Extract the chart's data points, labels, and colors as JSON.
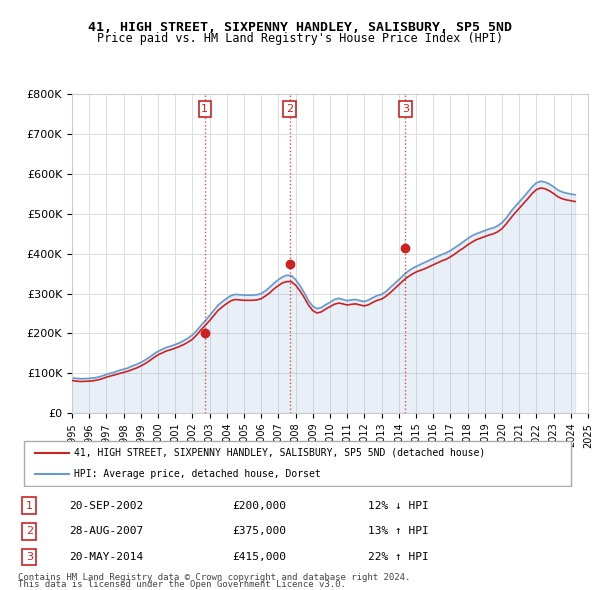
{
  "title": "41, HIGH STREET, SIXPENNY HANDLEY, SALISBURY, SP5 5ND",
  "subtitle": "Price paid vs. HM Land Registry's House Price Index (HPI)",
  "ylim": [
    0,
    800000
  ],
  "yticks": [
    0,
    100000,
    200000,
    300000,
    400000,
    500000,
    600000,
    700000,
    800000
  ],
  "ytick_labels": [
    "£0",
    "£100K",
    "£200K",
    "£300K",
    "£400K",
    "£500K",
    "£600K",
    "£700K",
    "£800K"
  ],
  "hpi_color": "#6699cc",
  "price_color": "#cc2222",
  "marker_color": "#cc2222",
  "transactions": [
    {
      "date_num": 2002.72,
      "price": 200000,
      "label": "1"
    },
    {
      "date_num": 2007.66,
      "price": 375000,
      "label": "2"
    },
    {
      "date_num": 2014.38,
      "price": 415000,
      "label": "3"
    }
  ],
  "transaction_labels": [
    {
      "label": "1",
      "date": "20-SEP-2002",
      "price": "£200,000",
      "change": "12% ↓ HPI"
    },
    {
      "label": "2",
      "date": "28-AUG-2007",
      "price": "£375,000",
      "change": "13% ↑ HPI"
    },
    {
      "label": "3",
      "date": "20-MAY-2014",
      "price": "£415,000",
      "change": "22% ↑ HPI"
    }
  ],
  "legend_line1": "41, HIGH STREET, SIXPENNY HANDLEY, SALISBURY, SP5 5ND (detached house)",
  "legend_line2": "HPI: Average price, detached house, Dorset",
  "footer1": "Contains HM Land Registry data © Crown copyright and database right 2024.",
  "footer2": "This data is licensed under the Open Government Licence v3.0.",
  "hpi_years": [
    1995.0,
    1995.25,
    1995.5,
    1995.75,
    1996.0,
    1996.25,
    1996.5,
    1996.75,
    1997.0,
    1997.25,
    1997.5,
    1997.75,
    1998.0,
    1998.25,
    1998.5,
    1998.75,
    1999.0,
    1999.25,
    1999.5,
    1999.75,
    2000.0,
    2000.25,
    2000.5,
    2000.75,
    2001.0,
    2001.25,
    2001.5,
    2001.75,
    2002.0,
    2002.25,
    2002.5,
    2002.75,
    2003.0,
    2003.25,
    2003.5,
    2003.75,
    2004.0,
    2004.25,
    2004.5,
    2004.75,
    2005.0,
    2005.25,
    2005.5,
    2005.75,
    2006.0,
    2006.25,
    2006.5,
    2006.75,
    2007.0,
    2007.25,
    2007.5,
    2007.75,
    2008.0,
    2008.25,
    2008.5,
    2008.75,
    2009.0,
    2009.25,
    2009.5,
    2009.75,
    2010.0,
    2010.25,
    2010.5,
    2010.75,
    2011.0,
    2011.25,
    2011.5,
    2011.75,
    2012.0,
    2012.25,
    2012.5,
    2012.75,
    2013.0,
    2013.25,
    2013.5,
    2013.75,
    2014.0,
    2014.25,
    2014.5,
    2014.75,
    2015.0,
    2015.25,
    2015.5,
    2015.75,
    2016.0,
    2016.25,
    2016.5,
    2016.75,
    2017.0,
    2017.25,
    2017.5,
    2017.75,
    2018.0,
    2018.25,
    2018.5,
    2018.75,
    2019.0,
    2019.25,
    2019.5,
    2019.75,
    2020.0,
    2020.25,
    2020.5,
    2020.75,
    2021.0,
    2021.25,
    2021.5,
    2021.75,
    2022.0,
    2022.25,
    2022.5,
    2022.75,
    2023.0,
    2023.25,
    2023.5,
    2023.75,
    2024.0,
    2024.25
  ],
  "hpi_values": [
    88000,
    87000,
    86000,
    86500,
    87000,
    88000,
    90000,
    93000,
    97000,
    100000,
    103000,
    107000,
    110000,
    113000,
    118000,
    122000,
    127000,
    133000,
    140000,
    148000,
    155000,
    160000,
    165000,
    168000,
    172000,
    176000,
    182000,
    188000,
    196000,
    207000,
    220000,
    232000,
    245000,
    258000,
    271000,
    280000,
    288000,
    295000,
    298000,
    297000,
    296000,
    296000,
    296000,
    297000,
    300000,
    307000,
    316000,
    326000,
    335000,
    342000,
    346000,
    345000,
    335000,
    320000,
    302000,
    282000,
    268000,
    262000,
    265000,
    272000,
    278000,
    285000,
    288000,
    285000,
    282000,
    284000,
    285000,
    282000,
    280000,
    284000,
    290000,
    295000,
    298000,
    305000,
    315000,
    325000,
    335000,
    345000,
    355000,
    362000,
    368000,
    373000,
    378000,
    383000,
    388000,
    393000,
    398000,
    402000,
    408000,
    415000,
    422000,
    430000,
    438000,
    445000,
    450000,
    454000,
    458000,
    462000,
    465000,
    470000,
    478000,
    490000,
    505000,
    518000,
    530000,
    542000,
    555000,
    568000,
    578000,
    582000,
    580000,
    575000,
    568000,
    560000,
    555000,
    552000,
    550000,
    548000
  ],
  "price_years": [
    1995.0,
    1995.25,
    1995.5,
    1995.75,
    1996.0,
    1996.25,
    1996.5,
    1996.75,
    1997.0,
    1997.25,
    1997.5,
    1997.75,
    1998.0,
    1998.25,
    1998.5,
    1998.75,
    1999.0,
    1999.25,
    1999.5,
    1999.75,
    2000.0,
    2000.25,
    2000.5,
    2000.75,
    2001.0,
    2001.25,
    2001.5,
    2001.75,
    2002.0,
    2002.25,
    2002.5,
    2002.75,
    2003.0,
    2003.25,
    2003.5,
    2003.75,
    2004.0,
    2004.25,
    2004.5,
    2004.75,
    2005.0,
    2005.25,
    2005.5,
    2005.75,
    2006.0,
    2006.25,
    2006.5,
    2006.75,
    2007.0,
    2007.25,
    2007.5,
    2007.75,
    2008.0,
    2008.25,
    2008.5,
    2008.75,
    2009.0,
    2009.25,
    2009.5,
    2009.75,
    2010.0,
    2010.25,
    2010.5,
    2010.75,
    2011.0,
    2011.25,
    2011.5,
    2011.75,
    2012.0,
    2012.25,
    2012.5,
    2012.75,
    2013.0,
    2013.25,
    2013.5,
    2013.75,
    2014.0,
    2014.25,
    2014.5,
    2014.75,
    2015.0,
    2015.25,
    2015.5,
    2015.75,
    2016.0,
    2016.25,
    2016.5,
    2016.75,
    2017.0,
    2017.25,
    2017.5,
    2017.75,
    2018.0,
    2018.25,
    2018.5,
    2018.75,
    2019.0,
    2019.25,
    2019.5,
    2019.75,
    2020.0,
    2020.25,
    2020.5,
    2020.75,
    2021.0,
    2021.25,
    2021.5,
    2021.75,
    2022.0,
    2022.25,
    2022.5,
    2022.75,
    2023.0,
    2023.25,
    2023.5,
    2023.75,
    2024.0,
    2024.25
  ],
  "price_values": [
    82000,
    80000,
    79000,
    79500,
    80000,
    81000,
    83000,
    86000,
    90000,
    93000,
    96000,
    99000,
    102000,
    105000,
    109000,
    113000,
    118000,
    124000,
    131000,
    139000,
    146000,
    151000,
    156000,
    159000,
    163000,
    167000,
    172000,
    178000,
    185000,
    196000,
    209000,
    220000,
    232000,
    245000,
    258000,
    267000,
    275000,
    282000,
    285000,
    284000,
    283000,
    283000,
    283000,
    284000,
    287000,
    294000,
    302000,
    312000,
    320000,
    327000,
    330000,
    330000,
    321000,
    307000,
    290000,
    271000,
    257000,
    251000,
    254000,
    261000,
    267000,
    273000,
    276000,
    274000,
    271000,
    273000,
    274000,
    271000,
    269000,
    272000,
    278000,
    283000,
    286000,
    293000,
    302000,
    312000,
    322000,
    332000,
    341000,
    348000,
    354000,
    358000,
    362000,
    367000,
    372000,
    377000,
    382000,
    386000,
    392000,
    399000,
    407000,
    414000,
    422000,
    429000,
    435000,
    439000,
    443000,
    447000,
    450000,
    455000,
    463000,
    475000,
    489000,
    502000,
    514000,
    526000,
    538000,
    551000,
    561000,
    565000,
    563000,
    558000,
    551000,
    543000,
    538000,
    535000,
    533000,
    531000
  ]
}
